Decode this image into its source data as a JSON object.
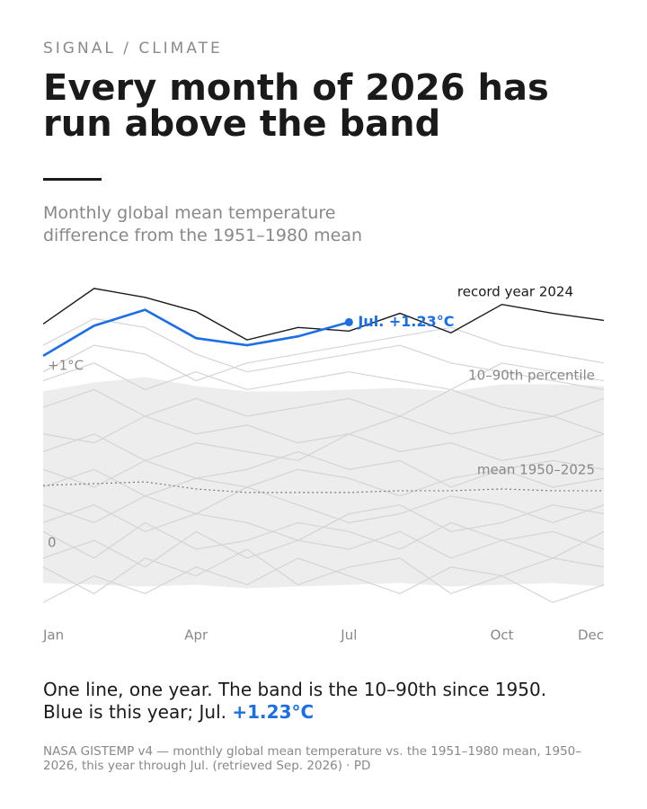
{
  "kicker": "SIGNAL / CLIMATE",
  "chart_data": {
    "type": "line",
    "title": "Every month of 2026 has run above the band",
    "subtitle": "Monthly global mean temperature difference from the 1951–1980 mean",
    "categories": [
      "Jan",
      null,
      null,
      "Apr",
      null,
      null,
      "Jul",
      null,
      null,
      "Oct",
      null,
      "Dec"
    ],
    "ylim": [
      -0.45,
      1.45
    ],
    "yticks": [
      0,
      {
        "value": 1,
        "label": "+1°C"
      }
    ],
    "band": {
      "name": "10–90th percentile",
      "color": "#ededed",
      "upper": [
        0.84,
        0.89,
        0.92,
        0.87,
        0.84,
        0.84,
        0.85,
        0.86,
        0.84,
        0.88,
        0.88,
        0.87
      ],
      "lower": [
        -0.24,
        -0.25,
        -0.26,
        -0.25,
        -0.27,
        -0.26,
        -0.25,
        -0.24,
        -0.26,
        -0.25,
        -0.24,
        -0.26
      ]
    },
    "mean": {
      "name": "mean 1950–2025",
      "color": "#777777",
      "values": [
        0.31,
        0.32,
        0.33,
        0.29,
        0.27,
        0.27,
        0.27,
        0.28,
        0.28,
        0.29,
        0.28,
        0.28
      ]
    },
    "background": {
      "color": "#d4d4d4",
      "series": [
        {
          "values": [
            -0.35,
            -0.2,
            -0.3,
            -0.15,
            -0.25,
            -0.1,
            -0.2,
            -0.3,
            -0.15,
            -0.2,
            -0.35,
            -0.25
          ]
        },
        {
          "values": [
            -0.15,
            -0.3,
            -0.1,
            -0.2,
            -0.05,
            -0.25,
            -0.15,
            -0.1,
            -0.3,
            -0.2,
            -0.1,
            -0.15
          ]
        },
        {
          "values": [
            -0.1,
            0.0,
            -0.15,
            0.05,
            -0.1,
            0.0,
            -0.05,
            0.05,
            -0.1,
            0.0,
            0.05,
            -0.05
          ]
        },
        {
          "values": [
            0.05,
            -0.1,
            0.1,
            -0.05,
            0.0,
            0.1,
            0.05,
            -0.05,
            0.1,
            0.0,
            -0.1,
            0.05
          ]
        },
        {
          "values": [
            0.1,
            0.2,
            0.05,
            0.15,
            0.1,
            0.0,
            0.15,
            0.2,
            0.05,
            0.1,
            0.2,
            0.15
          ]
        },
        {
          "values": [
            0.2,
            0.1,
            0.25,
            0.15,
            0.3,
            0.2,
            0.1,
            0.15,
            0.25,
            0.2,
            0.1,
            0.2
          ]
        },
        {
          "values": [
            0.3,
            0.4,
            0.25,
            0.35,
            0.3,
            0.4,
            0.35,
            0.25,
            0.35,
            0.4,
            0.3,
            0.35
          ]
        },
        {
          "values": [
            0.4,
            0.3,
            0.45,
            0.35,
            0.4,
            0.5,
            0.4,
            0.45,
            0.3,
            0.4,
            0.45,
            0.4
          ]
        },
        {
          "values": [
            0.5,
            0.6,
            0.45,
            0.55,
            0.5,
            0.45,
            0.6,
            0.5,
            0.55,
            0.45,
            0.5,
            0.6
          ]
        },
        {
          "values": [
            0.6,
            0.55,
            0.7,
            0.6,
            0.65,
            0.55,
            0.6,
            0.7,
            0.6,
            0.65,
            0.7,
            0.6
          ]
        },
        {
          "values": [
            0.75,
            0.85,
            0.7,
            0.8,
            0.7,
            0.75,
            0.8,
            0.7,
            0.85,
            0.75,
            0.7,
            0.8
          ]
        },
        {
          "values": [
            0.9,
            1.0,
            0.85,
            0.95,
            0.85,
            0.9,
            0.95,
            0.9,
            0.85,
            1.0,
            0.95,
            0.9
          ]
        },
        {
          "values": [
            0.95,
            1.1,
            1.05,
            0.9,
            1.0,
            1.05,
            1.1,
            1.15,
            1.2,
            1.1,
            1.05,
            1.0
          ]
        },
        {
          "values": [
            1.1,
            1.25,
            1.2,
            1.05,
            0.95,
            1.0,
            1.05,
            1.1,
            1.0,
            0.95,
            0.9,
            0.85
          ]
        }
      ]
    },
    "series": [
      {
        "name": "record year 2024",
        "color": "#1a1a1a",
        "values": [
          1.22,
          1.42,
          1.37,
          1.29,
          1.13,
          1.2,
          1.18,
          1.28,
          1.17,
          1.33,
          1.28,
          1.24
        ]
      },
      {
        "name": "2026",
        "color": "#1a6ee6",
        "values": [
          1.04,
          1.21,
          1.3,
          1.14,
          1.1,
          1.15,
          1.23,
          null,
          null,
          null,
          null,
          null
        ],
        "value_labels": [
          null,
          null,
          null,
          null,
          null,
          null,
          "Jul. +1.23°C",
          null,
          null,
          null,
          null,
          null
        ]
      }
    ],
    "caption": "One line, one year. The band is the 10–90th since 1950. Blue is this year; Jul.",
    "caption_highlight": "+1.23°C",
    "source": "NASA GISTEMP v4 — monthly global mean temperature vs. the 1951–1980 mean, 1950–2026, this year through Jul. (retrieved Sep. 2026) · PD"
  }
}
